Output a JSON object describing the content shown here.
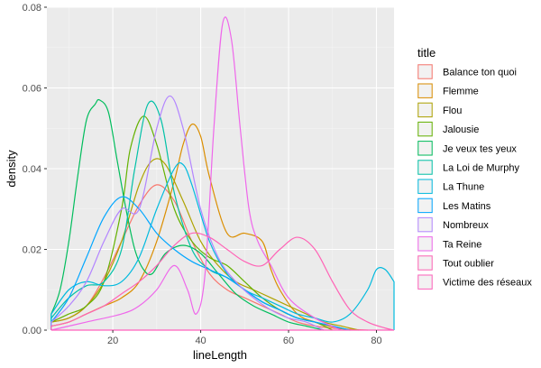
{
  "chart_data": {
    "type": "line",
    "subtype": "density",
    "xlabel": "lineLength",
    "ylabel": "density",
    "xlim": [
      5,
      84
    ],
    "ylim": [
      0,
      0.08
    ],
    "x_ticks": [
      20,
      40,
      60,
      80
    ],
    "y_ticks": [
      0.0,
      0.02,
      0.04,
      0.06,
      0.08
    ],
    "y_tick_labels": [
      "0.00",
      "0.02",
      "0.04",
      "0.06",
      "0.08"
    ],
    "grid": true,
    "panel_background": "#ebebeb",
    "legend": {
      "title": "title",
      "position": "right"
    },
    "series": [
      {
        "name": "Balance ton quoi",
        "color": "#F8766D",
        "x": [
          6,
          10,
          14,
          18,
          22,
          26,
          30,
          34,
          38,
          42,
          46,
          50,
          54,
          58,
          62,
          66,
          70,
          74,
          78
        ],
        "y": [
          0.002,
          0.003,
          0.006,
          0.013,
          0.022,
          0.031,
          0.036,
          0.032,
          0.022,
          0.014,
          0.01,
          0.008,
          0.006,
          0.004,
          0.002,
          0.001,
          0.0005,
          0.0002,
          0.0
        ]
      },
      {
        "name": "Flemme",
        "color": "#DB8E00",
        "x": [
          6,
          10,
          14,
          18,
          22,
          26,
          30,
          34,
          36,
          38,
          40,
          42,
          46,
          50,
          54,
          56,
          58,
          62,
          66,
          70,
          74
        ],
        "y": [
          0.001,
          0.002,
          0.004,
          0.006,
          0.008,
          0.012,
          0.022,
          0.037,
          0.046,
          0.051,
          0.048,
          0.038,
          0.024,
          0.024,
          0.022,
          0.015,
          0.01,
          0.004,
          0.002,
          0.0008,
          0.0
        ]
      },
      {
        "name": "Flou",
        "color": "#AEA200",
        "x": [
          6,
          10,
          14,
          18,
          22,
          26,
          29,
          32,
          36,
          40,
          44,
          48,
          52,
          56,
          60,
          64,
          68,
          72,
          76
        ],
        "y": [
          0.002,
          0.003,
          0.006,
          0.012,
          0.022,
          0.036,
          0.042,
          0.041,
          0.032,
          0.022,
          0.016,
          0.012,
          0.01,
          0.008,
          0.006,
          0.004,
          0.002,
          0.001,
          0.0
        ]
      },
      {
        "name": "Jalousie",
        "color": "#64B200",
        "x": [
          6,
          10,
          14,
          18,
          22,
          24,
          27,
          30,
          34,
          38,
          42,
          46,
          50,
          54,
          58,
          62,
          66,
          70
        ],
        "y": [
          0.002,
          0.004,
          0.006,
          0.012,
          0.03,
          0.045,
          0.053,
          0.046,
          0.03,
          0.022,
          0.018,
          0.016,
          0.012,
          0.008,
          0.005,
          0.003,
          0.002,
          0.0
        ]
      },
      {
        "name": "Je veux tes yeux",
        "color": "#00BD5C",
        "x": [
          6,
          8,
          10,
          12,
          14,
          16,
          17,
          19,
          21,
          23,
          25,
          27,
          29,
          32,
          36,
          40,
          44,
          48,
          52,
          56,
          60,
          64,
          68
        ],
        "y": [
          0.004,
          0.01,
          0.022,
          0.038,
          0.052,
          0.056,
          0.057,
          0.054,
          0.042,
          0.03,
          0.02,
          0.015,
          0.014,
          0.019,
          0.021,
          0.019,
          0.014,
          0.009,
          0.006,
          0.004,
          0.002,
          0.001,
          0.0
        ]
      },
      {
        "name": "La Loi de Murphy",
        "color": "#00C1A7",
        "x": [
          6,
          10,
          14,
          18,
          22,
          25,
          28,
          31,
          34,
          38,
          42,
          46,
          50,
          54,
          58,
          62,
          66,
          70,
          74
        ],
        "y": [
          0.003,
          0.008,
          0.011,
          0.012,
          0.02,
          0.04,
          0.056,
          0.052,
          0.034,
          0.02,
          0.015,
          0.013,
          0.01,
          0.007,
          0.005,
          0.003,
          0.002,
          0.001,
          0.0
        ]
      },
      {
        "name": "La Thune",
        "color": "#00BADE",
        "x": [
          6,
          10,
          14,
          18,
          22,
          26,
          30,
          34,
          36,
          38,
          42,
          46,
          50,
          54,
          58,
          62,
          66,
          70,
          74,
          78,
          80,
          82,
          84
        ],
        "y": [
          0.004,
          0.01,
          0.012,
          0.011,
          0.012,
          0.018,
          0.03,
          0.04,
          0.041,
          0.036,
          0.022,
          0.014,
          0.01,
          0.008,
          0.006,
          0.004,
          0.003,
          0.002,
          0.004,
          0.01,
          0.015,
          0.015,
          0.012
        ]
      },
      {
        "name": "Les Matins",
        "color": "#00A6FF",
        "x": [
          6,
          10,
          14,
          18,
          22,
          26,
          30,
          34,
          38,
          42,
          46,
          50,
          54,
          58,
          62,
          66,
          70,
          74
        ],
        "y": [
          0.002,
          0.008,
          0.018,
          0.028,
          0.033,
          0.03,
          0.024,
          0.02,
          0.017,
          0.015,
          0.013,
          0.01,
          0.007,
          0.005,
          0.003,
          0.002,
          0.001,
          0.0
        ]
      },
      {
        "name": "Nombreux",
        "color": "#B385FF",
        "x": [
          6,
          10,
          14,
          18,
          22,
          26,
          30,
          33,
          36,
          40,
          44,
          48,
          52,
          56,
          60,
          64,
          68
        ],
        "y": [
          0.002,
          0.006,
          0.012,
          0.022,
          0.03,
          0.03,
          0.05,
          0.058,
          0.05,
          0.03,
          0.018,
          0.012,
          0.008,
          0.005,
          0.003,
          0.002,
          0.0
        ]
      },
      {
        "name": "Ta Reine",
        "color": "#EF67EB",
        "x": [
          6,
          14,
          22,
          26,
          30,
          34,
          37,
          39,
          41,
          43,
          45,
          47,
          49,
          51,
          53,
          56,
          60,
          66,
          72
        ],
        "y": [
          0.0,
          0.002,
          0.004,
          0.006,
          0.01,
          0.016,
          0.01,
          0.004,
          0.014,
          0.05,
          0.076,
          0.072,
          0.05,
          0.03,
          0.022,
          0.016,
          0.008,
          0.003,
          0.0
        ]
      },
      {
        "name": "Tout oublier",
        "color": "#FF63B6",
        "x": [
          6,
          10,
          14,
          18,
          22,
          26,
          30,
          34,
          38,
          42,
          46,
          50,
          54,
          58,
          62,
          66,
          70,
          74,
          78,
          82,
          84
        ],
        "y": [
          0.001,
          0.002,
          0.004,
          0.006,
          0.009,
          0.012,
          0.016,
          0.021,
          0.024,
          0.023,
          0.02,
          0.017,
          0.016,
          0.02,
          0.023,
          0.02,
          0.012,
          0.005,
          0.002,
          0.0005,
          0.0
        ]
      },
      {
        "name": "Victime des réseaux",
        "color": "#FF62BC",
        "x": [
          6,
          14,
          18,
          22,
          26,
          30,
          34,
          38,
          42,
          46,
          50,
          54,
          58,
          62,
          66,
          70,
          76,
          84
        ],
        "y": [
          0.0,
          0.0,
          0.0,
          0.0,
          0.0,
          0.0,
          0.0,
          0.0,
          0.0,
          0.0,
          0.0,
          0.0,
          0.0,
          0.0,
          0.0,
          0.0,
          0.0,
          0.0
        ]
      }
    ]
  }
}
